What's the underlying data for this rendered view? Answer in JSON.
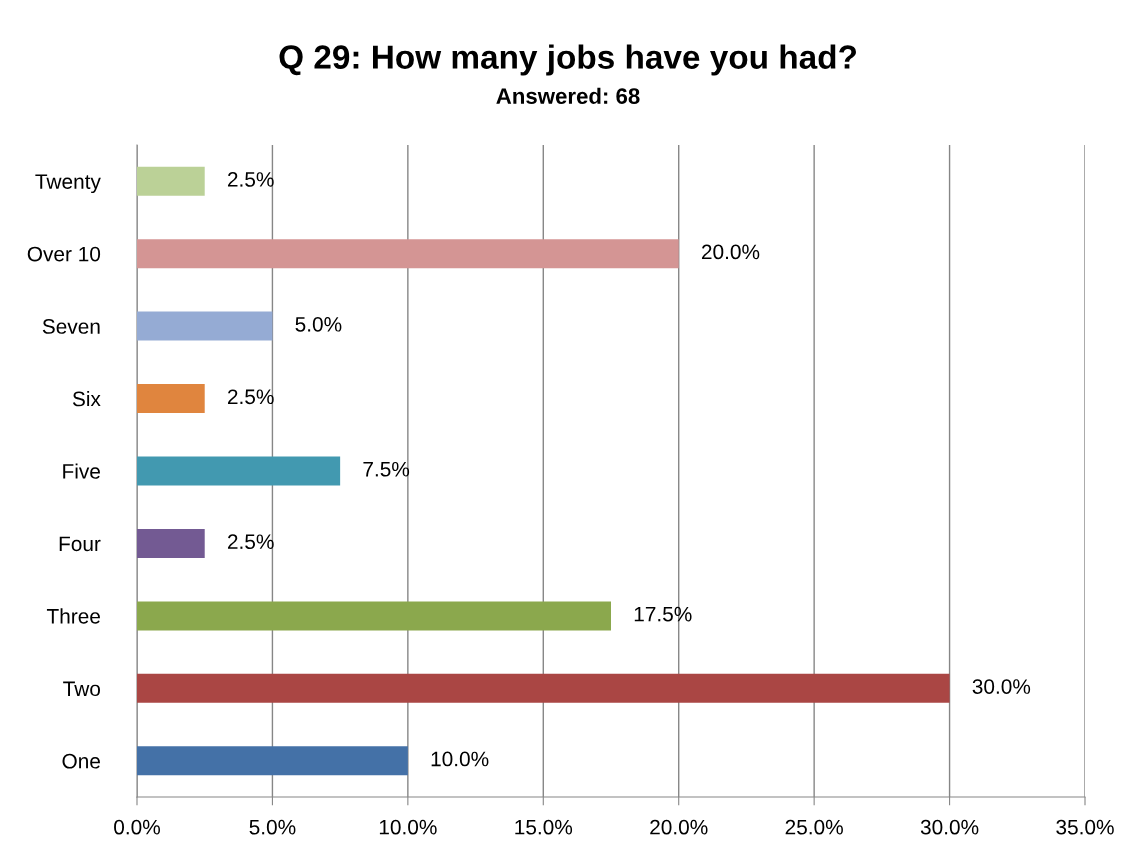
{
  "chart_data": {
    "type": "bar",
    "orientation": "horizontal",
    "title": "Q 29: How many jobs have you had?",
    "subtitle": "Answered: 68",
    "categories": [
      "Twenty",
      "Over 10",
      "Seven",
      "Six",
      "Five",
      "Four",
      "Three",
      "Two",
      "One"
    ],
    "values": [
      2.5,
      20.0,
      5.0,
      2.5,
      7.5,
      2.5,
      17.5,
      30.0,
      10.0
    ],
    "value_labels": [
      "2.5%",
      "20.0%",
      "5.0%",
      "2.5%",
      "7.5%",
      "2.5%",
      "17.5%",
      "30.0%",
      "10.0%"
    ],
    "colors": [
      "#bbd197",
      "#d49594",
      "#95abd4",
      "#e0853e",
      "#4299b0",
      "#735a93",
      "#8ba84d",
      "#aa4644",
      "#4471a7"
    ],
    "xlim": [
      0,
      35
    ],
    "xticks": [
      {
        "value": 0,
        "label": "0.0%"
      },
      {
        "value": 5,
        "label": "5.0%"
      },
      {
        "value": 10,
        "label": "10.0%"
      },
      {
        "value": 15,
        "label": "15.0%"
      },
      {
        "value": 20,
        "label": "20.0%"
      },
      {
        "value": 25,
        "label": "25.0%"
      },
      {
        "value": 30,
        "label": "30.0%"
      },
      {
        "value": 35,
        "label": "35.0%"
      }
    ],
    "grid": "x",
    "legend": false
  }
}
